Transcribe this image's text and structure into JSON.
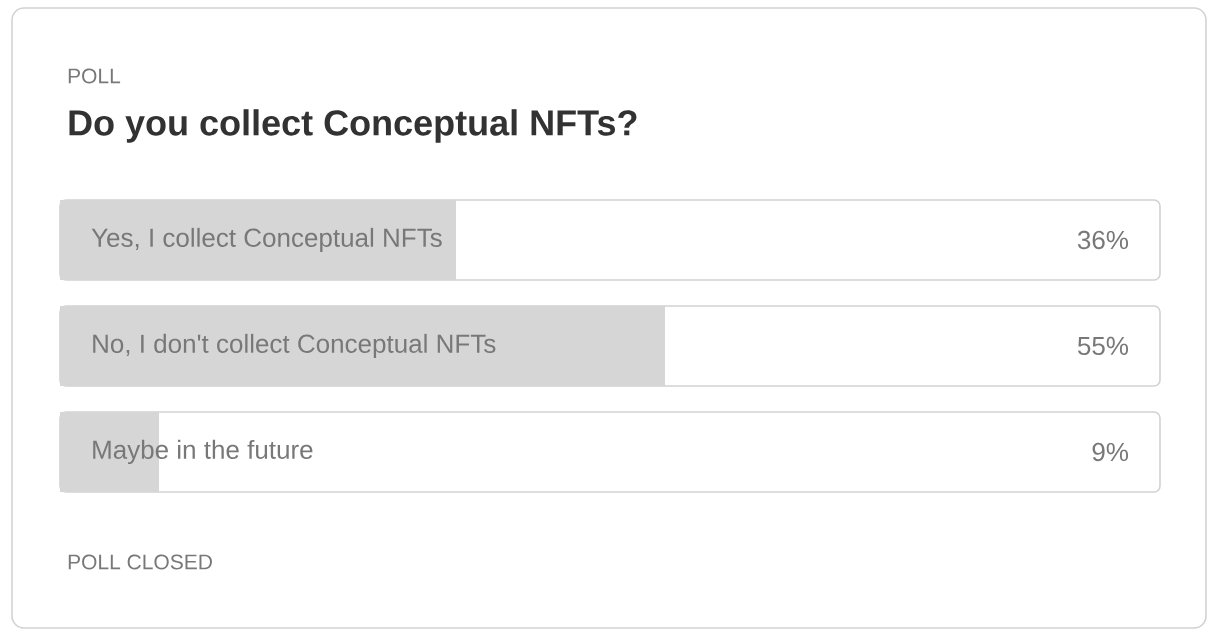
{
  "chart_data": {
    "type": "bar",
    "orientation": "horizontal",
    "title": "Do you collect Conceptual NFTs?",
    "annotations": [
      "POLL",
      "POLL CLOSED"
    ],
    "categories": [
      "Yes, I collect Conceptual NFTs",
      "No, I don't collect Conceptual NFTs",
      "Maybe in the future"
    ],
    "values": [
      36,
      55,
      9
    ],
    "value_labels": [
      "36%",
      "55%",
      "9%"
    ],
    "color": "#d6d6d6",
    "xlim": [
      0,
      100
    ]
  }
}
